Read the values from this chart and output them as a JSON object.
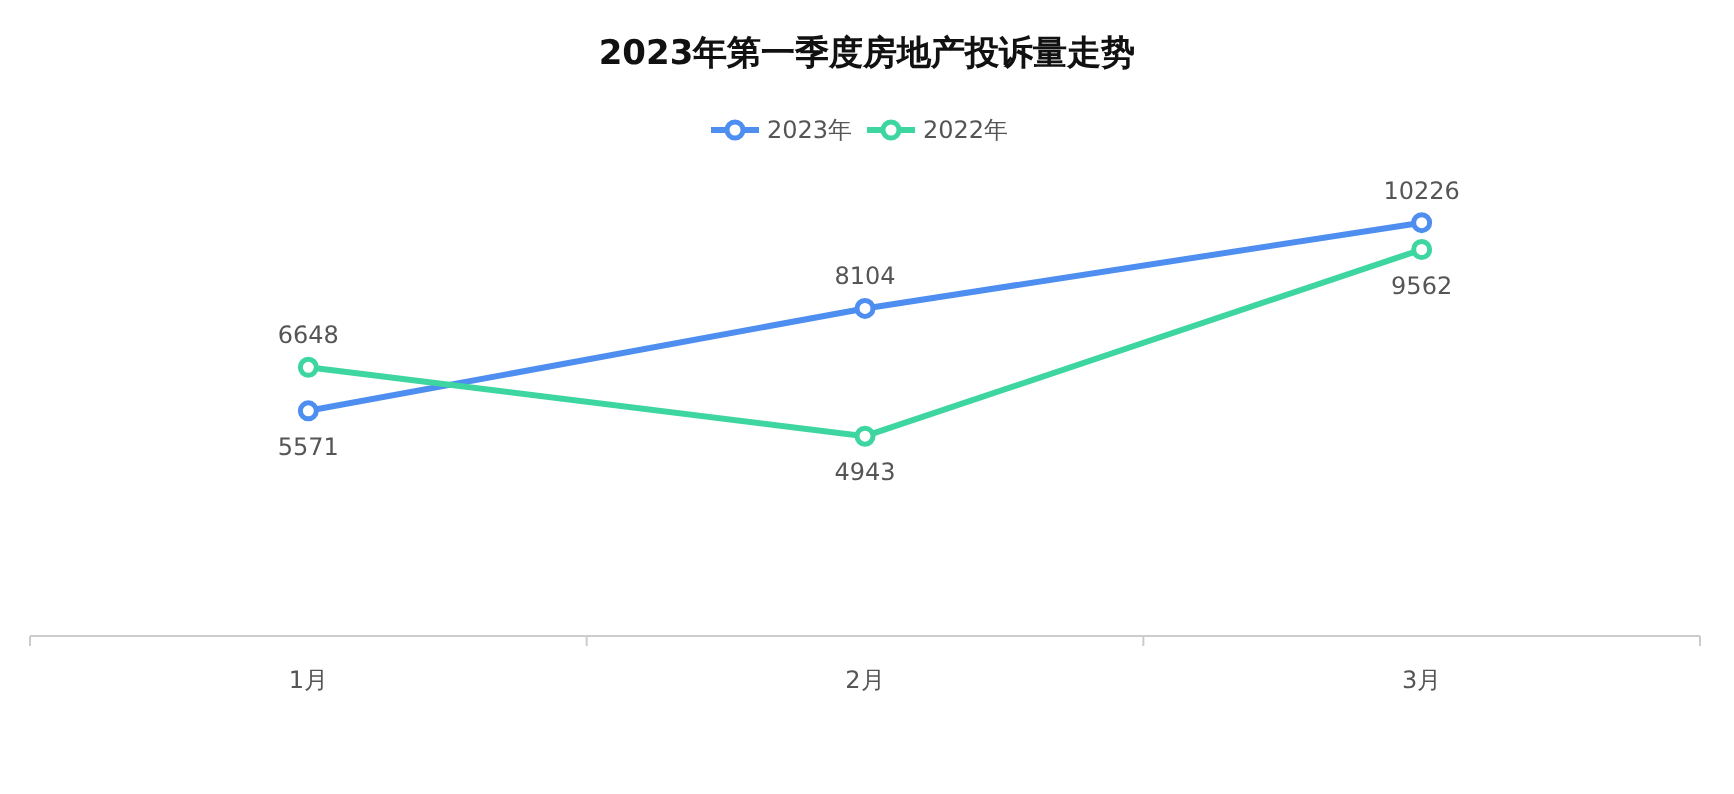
{
  "chart_data": {
    "type": "line",
    "title": "2023年第一季度房地产投诉量走势",
    "categories": [
      "1月",
      "2月",
      "3月"
    ],
    "series": [
      {
        "name": "2023年",
        "color": "#4e8ef0",
        "values": [
          5571,
          8104,
          10226
        ]
      },
      {
        "name": "2022年",
        "color": "#3ed6a0",
        "values": [
          6648,
          4943,
          9562
        ]
      }
    ],
    "data_labels": true,
    "legend": "top",
    "marker": "circle",
    "grid": false,
    "line_style": "solid"
  }
}
